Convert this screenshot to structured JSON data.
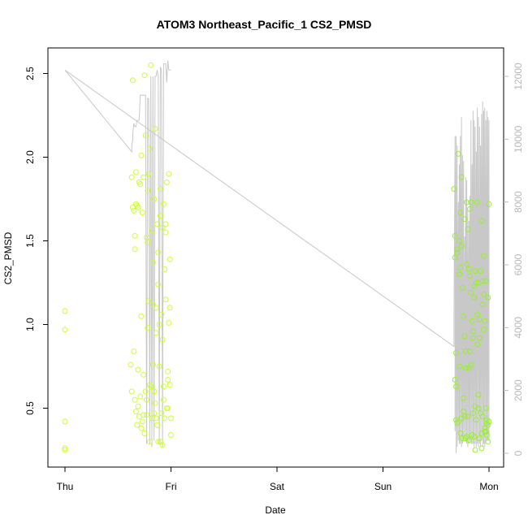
{
  "chart_data": {
    "type": "scatter",
    "title": "ATOM3 Northeast_Pacific_1 CS2_PMSD",
    "xlabel": "Date",
    "ylabel": "CS2_PMSD",
    "x_ticks": [
      "Thu",
      "Fri",
      "Sat",
      "Sun",
      "Mon"
    ],
    "y_ticks": [
      "0.5",
      "1.0",
      "1.5",
      "2.0",
      "2.5"
    ],
    "y2_ticks": [
      "0",
      "2000",
      "4000",
      "6000",
      "8000",
      "10000",
      "12000"
    ],
    "xlim": [
      0,
      4.1
    ],
    "ylim": [
      0.2,
      2.6
    ],
    "y2lim": [
      -200,
      12800
    ],
    "colors": {
      "points_fri": "#ccff33",
      "points_mon": "#99ee33",
      "line": "#c8c8c8",
      "right_axis": "#bbbbbb"
    },
    "series": [
      {
        "type": "scatter",
        "x": [
          0.0,
          0.0,
          0.0,
          0.0,
          0.0,
          0.62,
          0.63,
          0.63,
          0.64,
          0.64,
          0.65,
          0.65,
          0.66,
          0.66,
          0.67,
          0.67,
          0.68,
          0.68,
          0.69,
          0.69,
          0.7,
          0.7,
          0.71,
          0.71,
          0.72,
          0.72,
          0.73,
          0.73,
          0.74,
          0.74,
          0.75,
          0.75,
          0.76,
          0.76,
          0.77,
          0.77,
          0.78,
          0.78,
          0.79,
          0.79,
          0.8,
          0.8,
          0.81,
          0.81,
          0.82,
          0.82,
          0.83,
          0.83,
          0.84,
          0.84,
          0.85,
          0.85,
          0.86,
          0.86,
          0.87,
          0.87,
          0.88,
          0.88,
          0.89,
          0.89,
          0.9,
          0.9,
          0.91,
          0.91,
          0.92,
          0.92,
          0.93,
          0.93,
          0.94,
          0.94,
          0.95,
          0.95,
          0.96,
          0.96,
          0.97,
          0.97,
          0.98,
          0.98,
          0.99,
          0.99,
          1.0,
          1.0,
          0.69,
          0.74,
          0.78,
          0.86,
          0.88,
          0.93,
          0.95,
          0.66,
          0.72,
          0.8,
          0.84,
          0.9,
          0.97,
          0.99,
          0.67,
          0.77,
          0.83,
          0.92
        ],
        "y": [
          1.08,
          0.97,
          0.42,
          0.26,
          0.25,
          0.76,
          0.6,
          1.88,
          2.46,
          1.7,
          0.84,
          1.68,
          1.45,
          0.55,
          1.72,
          0.48,
          0.4,
          1.71,
          0.73,
          1.7,
          0.45,
          1.85,
          1.84,
          0.57,
          0.38,
          1.05,
          0.42,
          1.67,
          0.7,
          1.88,
          2.49,
          0.35,
          0.6,
          2.13,
          1.52,
          0.46,
          1.8,
          0.98,
          1.14,
          1.9,
          0.3,
          2.05,
          2.55,
          0.63,
          1.56,
          0.44,
          1.12,
          1.37,
          0.6,
          1.75,
          2.17,
          0.53,
          0.44,
          0.95,
          1.6,
          0.4,
          0.3,
          1.24,
          1.0,
          0.75,
          1.65,
          0.3,
          0.47,
          1.06,
          0.28,
          0.91,
          1.72,
          0.55,
          0.44,
          1.33,
          1.55,
          1.15,
          0.5,
          1.85,
          0.72,
          0.67,
          1.9,
          1.01,
          0.64,
          1.1,
          0.34,
          0.44,
          0.51,
          0.46,
          1.49,
          1.1,
          1.43,
          0.63,
          1.6,
          1.53,
          2.01,
          0.64,
          0.47,
          1.81,
          0.5,
          1.39,
          1.91,
          0.55,
          0.76,
          1.58
        ]
      },
      {
        "type": "scatter",
        "x": [
          3.67,
          3.68,
          3.68,
          3.69,
          3.69,
          3.7,
          3.7,
          3.71,
          3.71,
          3.72,
          3.72,
          3.73,
          3.73,
          3.74,
          3.74,
          3.75,
          3.75,
          3.76,
          3.76,
          3.77,
          3.77,
          3.78,
          3.78,
          3.79,
          3.79,
          3.8,
          3.8,
          3.81,
          3.81,
          3.82,
          3.82,
          3.83,
          3.83,
          3.84,
          3.84,
          3.85,
          3.85,
          3.86,
          3.86,
          3.87,
          3.87,
          3.88,
          3.88,
          3.89,
          3.89,
          3.9,
          3.9,
          3.91,
          3.91,
          3.92,
          3.92,
          3.93,
          3.93,
          3.94,
          3.94,
          3.95,
          3.95,
          3.96,
          3.96,
          3.97,
          3.97,
          3.98,
          3.98,
          3.99,
          3.99,
          4.0,
          4.0,
          3.69,
          3.72,
          3.76,
          3.79,
          3.83,
          3.86,
          3.9,
          3.94,
          3.97,
          3.7,
          3.74,
          3.78,
          3.82,
          3.87,
          3.91,
          3.95,
          3.98,
          3.68,
          3.73,
          3.77,
          3.81,
          3.85,
          3.89,
          3.93,
          3.96,
          3.99
        ],
        "y": [
          1.81,
          0.67,
          1.53,
          0.63,
          0.43,
          1.43,
          0.41,
          2.02,
          0.42,
          0.75,
          1.5,
          0.35,
          1.34,
          0.44,
          1.47,
          0.32,
          1.22,
          0.56,
          1.05,
          0.93,
          1.63,
          0.32,
          0.84,
          1.73,
          0.33,
          1.57,
          0.45,
          1.33,
          0.31,
          1.29,
          0.84,
          1.19,
          1.73,
          0.34,
          1.02,
          0.47,
          0.96,
          1.16,
          0.33,
          1.32,
          0.25,
          1.25,
          0.43,
          0.88,
          1.73,
          0.5,
          1.25,
          0.32,
          1.03,
          0.47,
          1.32,
          0.35,
          0.26,
          1.26,
          0.45,
          0.97,
          1.18,
          0.36,
          1.02,
          0.5,
          1.26,
          0.34,
          0.43,
          1.16,
          0.3,
          0.42,
          1.72,
          0.83,
          1.3,
          0.48,
          1.36,
          0.76,
          1.23,
          0.58,
          1.12,
          0.36,
          1.45,
          1.88,
          0.74,
          1.69,
          0.51,
          0.92,
          1.41,
          0.41,
          1.4,
          1.67,
          0.45,
          0.74,
          0.92,
          1.06,
          1.62,
          0.38,
          0.4
        ]
      },
      {
        "type": "line",
        "x": [
          0.0,
          3.67,
          3.67,
          3.68,
          3.68,
          3.69,
          3.69,
          3.7,
          3.7,
          3.71,
          3.71,
          3.72,
          3.72,
          3.73,
          3.73,
          3.74,
          3.74,
          3.75,
          3.75,
          3.76,
          3.76,
          3.77,
          3.77,
          3.78,
          3.78,
          3.79,
          3.79,
          3.8,
          3.8,
          3.81,
          3.81,
          3.82,
          3.82,
          3.83,
          3.83,
          3.84,
          3.84,
          3.85,
          3.85,
          3.86,
          3.86,
          3.87,
          3.87,
          3.88,
          3.88,
          3.89,
          3.89,
          3.9,
          3.9,
          3.91,
          3.91,
          3.92,
          3.92,
          3.93,
          3.93,
          3.94,
          3.94,
          3.95,
          3.95,
          3.96,
          3.96,
          3.97,
          3.97,
          3.98,
          3.98,
          3.99,
          3.99,
          4.0,
          4.0
        ],
        "y": [
          12200,
          3400,
          4400,
          10100,
          700,
          10100,
          0,
          9800,
          200,
          8000,
          400,
          9200,
          300,
          10100,
          300,
          10700,
          200,
          9500,
          300,
          9300,
          400,
          6900,
          500,
          8800,
          400,
          8700,
          300,
          7800,
          200,
          7400,
          300,
          8200,
          400,
          10600,
          300,
          9200,
          300,
          10900,
          300,
          10600,
          200,
          10400,
          300,
          9600,
          200,
          11000,
          300,
          10700,
          200,
          10400,
          300,
          9800,
          200,
          10800,
          400,
          11200,
          200,
          10900,
          300,
          11000,
          200,
          10600,
          300,
          10900,
          400,
          10700,
          400,
          10600,
          400
        ]
      },
      {
        "type": "line",
        "x": [
          0.0,
          0.63,
          0.63,
          0.64,
          0.64,
          0.65,
          0.66,
          0.67,
          0.68,
          0.69,
          0.7,
          0.71,
          0.72,
          0.73,
          0.74,
          0.75,
          0.76,
          0.77,
          0.78,
          0.79,
          0.8,
          0.81,
          0.82,
          0.83,
          0.84,
          0.85,
          0.86,
          0.87,
          0.88,
          0.89,
          0.9,
          0.91,
          0.92,
          0.93,
          0.94,
          0.95,
          0.96,
          0.97,
          0.98,
          0.99,
          1.0
        ],
        "y": [
          12200,
          9600,
          9800,
          10000,
          10200,
          10500,
          10400,
          10400,
          10600,
          10600,
          10600,
          11400,
          11400,
          11400,
          11400,
          11400,
          11400,
          300,
          11300,
          11300,
          300,
          12000,
          200,
          12000,
          400,
          12000,
          12000,
          12200,
          12000,
          300,
          12300,
          12200,
          200,
          12400,
          12400,
          12400,
          11800,
          12500,
          12200,
          12200,
          12200
        ]
      }
    ]
  }
}
